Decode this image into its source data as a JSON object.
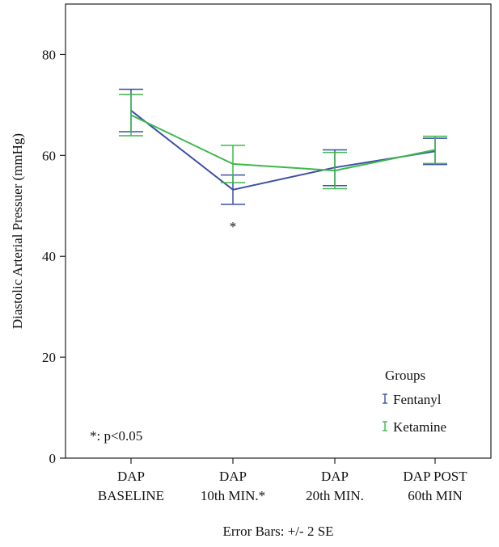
{
  "chart_data": {
    "type": "line",
    "title": "",
    "xlabel": "",
    "ylabel": "Diastolic Arterial Pressuer (mmHg)",
    "ylim": [
      0,
      90
    ],
    "y_ticks": [
      0,
      20,
      40,
      60,
      80
    ],
    "y_tick_labels": [
      "0",
      "20",
      "40",
      "60",
      "80"
    ],
    "categories": [
      [
        "DAP",
        "BASELINE"
      ],
      [
        "DAP",
        "10th MIN.*"
      ],
      [
        "DAP",
        "20th MIN."
      ],
      [
        "DAP POST",
        "60th MIN"
      ]
    ],
    "grid": false,
    "legend_title": "Groups",
    "legend_position": "bottom-right",
    "series": [
      {
        "name": "Fentanyl",
        "color": "#3d4fa6",
        "values": [
          68.9,
          53.2,
          57.6,
          60.8
        ],
        "lower": [
          64.7,
          50.3,
          54.0,
          58.2
        ],
        "upper": [
          73.1,
          56.1,
          61.1,
          63.4
        ]
      },
      {
        "name": "Ketamine",
        "color": "#3cb84a",
        "values": [
          68.0,
          58.3,
          57.0,
          61.1
        ],
        "lower": [
          63.9,
          54.6,
          53.4,
          58.4
        ],
        "upper": [
          72.1,
          62.0,
          60.6,
          63.8
        ]
      }
    ],
    "annotations": {
      "significance_marker": "*",
      "significance_category_index": 1,
      "significance_y": 46,
      "footnote": "*: p<0.05",
      "error_bar_note": "Error Bars: +/- 2 SE"
    }
  }
}
